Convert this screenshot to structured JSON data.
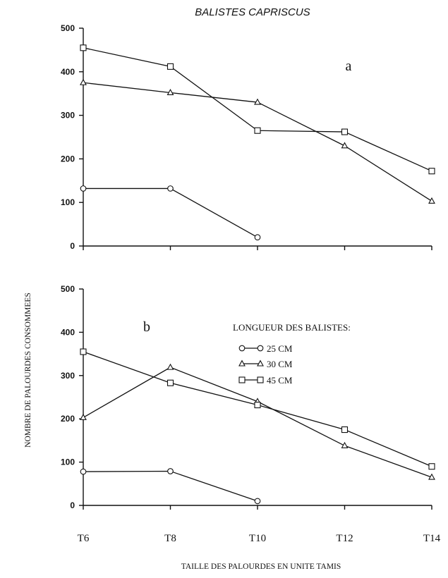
{
  "chart_data": [
    {
      "type": "line",
      "title": "BALISTES CAPRISCUS",
      "panel_label": "a",
      "categories": [
        "T6",
        "T8",
        "T10",
        "T12",
        "T14"
      ],
      "ylim": [
        0,
        500
      ],
      "yticks": [
        0,
        100,
        200,
        300,
        400,
        500
      ],
      "show_x_tick_labels": false,
      "series": [
        {
          "name": "25 CM",
          "marker": "circle",
          "values": [
            132,
            132,
            20,
            null,
            null
          ]
        },
        {
          "name": "30 CM",
          "marker": "triangle",
          "values": [
            375,
            352,
            330,
            230,
            103
          ]
        },
        {
          "name": "45 CM",
          "marker": "square",
          "values": [
            455,
            412,
            265,
            262,
            172
          ]
        }
      ]
    },
    {
      "type": "line",
      "panel_label": "b",
      "categories": [
        "T6",
        "T8",
        "T10",
        "T12",
        "T14"
      ],
      "ylim": [
        0,
        500
      ],
      "yticks": [
        0,
        100,
        200,
        300,
        400,
        500
      ],
      "show_x_tick_labels": true,
      "xlabel": "TAILLE DES PALOURDES EN UNITE TAMIS",
      "ylabel": "NOMBRE DE PALOURDES CONSOMMEES",
      "legend": {
        "title": "LONGUEUR DES BALISTES:",
        "placement": "right",
        "entries": [
          "25 CM",
          "30 CM",
          "45 CM"
        ]
      },
      "series": [
        {
          "name": "25 CM",
          "marker": "circle",
          "values": [
            78,
            79,
            10,
            null,
            null
          ]
        },
        {
          "name": "30 CM",
          "marker": "triangle",
          "values": [
            203,
            319,
            240,
            138,
            65
          ]
        },
        {
          "name": "45 CM",
          "marker": "square",
          "values": [
            355,
            283,
            232,
            175,
            90
          ]
        }
      ]
    }
  ]
}
